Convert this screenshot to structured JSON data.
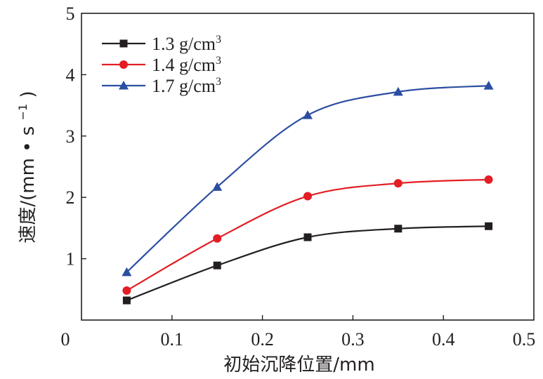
{
  "chart_data": {
    "type": "line",
    "title": "",
    "xlabel": "初始沉降位置/mm",
    "ylabel": "速度/(mm • s",
    "ylabel_superscript": "−1",
    "ylabel_suffix": ")",
    "xlim": [
      0,
      0.5
    ],
    "ylim": [
      0,
      5
    ],
    "x_ticks": [
      0,
      0.1,
      0.2,
      0.3,
      0.4,
      0.5
    ],
    "x_tick_labels": [
      "0",
      "0.1",
      "0.2",
      "0.3",
      "0.4",
      "0.5"
    ],
    "y_ticks": [
      1,
      2,
      3,
      4,
      5
    ],
    "y_tick_labels": [
      "1",
      "2",
      "3",
      "4",
      "5"
    ],
    "grid": false,
    "legend_position": "top-left",
    "x": [
      0.05,
      0.15,
      0.25,
      0.35,
      0.45
    ],
    "series": [
      {
        "name_main": "1.3 g/cm",
        "name_sup": "3",
        "color": "#231f20",
        "marker": "square",
        "values": [
          0.32,
          0.89,
          1.35,
          1.49,
          1.53
        ]
      },
      {
        "name_main": "1.4 g/cm",
        "name_sup": "3",
        "color": "#e31e24",
        "marker": "circle",
        "values": [
          0.48,
          1.33,
          2.02,
          2.23,
          2.29
        ]
      },
      {
        "name_main": "1.7 g/cm",
        "name_sup": "3",
        "color": "#2b4ea2",
        "marker": "triangle",
        "values": [
          0.78,
          2.17,
          3.34,
          3.72,
          3.82
        ]
      }
    ]
  }
}
